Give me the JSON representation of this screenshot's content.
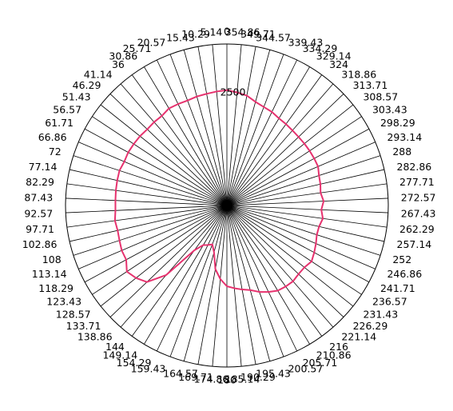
{
  "chart_data": {
    "type": "radar",
    "title": "",
    "angle_ticks": [
      "0",
      "5.14",
      "10.29",
      "15.43",
      "20.57",
      "25.71",
      "30.86",
      "36",
      "41.14",
      "46.29",
      "51.43",
      "56.57",
      "61.71",
      "66.86",
      "72",
      "77.14",
      "82.29",
      "87.43",
      "92.57",
      "97.71",
      "102.86",
      "108",
      "113.14",
      "118.29",
      "123.43",
      "128.57",
      "133.71",
      "138.86",
      "144",
      "149.14",
      "154.29",
      "159.43",
      "164.57",
      "169.71",
      "174.86",
      "180",
      "185.14",
      "190.29",
      "195.43",
      "200.57",
      "205.71",
      "210.86",
      "216",
      "221.14",
      "226.29",
      "231.43",
      "236.57",
      "241.71",
      "246.86",
      "252",
      "257.14",
      "262.29",
      "267.43",
      "272.57",
      "277.71",
      "282.86",
      "288",
      "293.14",
      "298.29",
      "303.43",
      "308.57",
      "313.71",
      "318.86",
      "324",
      "329.14",
      "334.29",
      "339.43",
      "344.57",
      "349.71",
      "354.86"
    ],
    "radial_ticks": [
      2500
    ],
    "rlim": [
      0,
      3500
    ],
    "grid": true,
    "angle_direction": "counterclockwise",
    "zero_location": "top",
    "series": [
      {
        "color": "#e6326e",
        "values": [
          2500,
          2480,
          2460,
          2450,
          2430,
          2440,
          2450,
          2400,
          2400,
          2390,
          2410,
          2420,
          2430,
          2420,
          2450,
          2440,
          2430,
          2420,
          2420,
          2450,
          2430,
          2450,
          2480,
          2480,
          2600,
          2520,
          2400,
          2000,
          1200,
          1000,
          950,
          900,
          1050,
          1400,
          1600,
          1750,
          1800,
          1850,
          1900,
          2000,
          2080,
          2150,
          2170,
          2180,
          2150,
          2150,
          2200,
          2150,
          2100,
          2050,
          2050,
          2100,
          2050,
          2100,
          2050,
          2080,
          2100,
          2150,
          2150,
          2150,
          2150,
          2150,
          2160,
          2180,
          2200,
          2250,
          2280,
          2330,
          2420,
          2460
        ]
      }
    ]
  }
}
